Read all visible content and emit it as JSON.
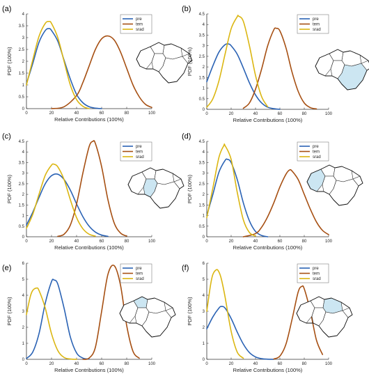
{
  "colors": {
    "pre": "#2a62b4",
    "tem": "#a64f12",
    "srad": "#dbb611",
    "region_fill": "#cce6f2",
    "axis": "#333333"
  },
  "chart_data": [
    {
      "type": "line",
      "panel_label": "(a)",
      "xlabel": "Relative Contributions (100%)",
      "ylabel": "PDF (100%)",
      "xlim": [
        0,
        100
      ],
      "ylim": [
        0,
        4
      ],
      "xticks": [
        "0",
        "20",
        "40",
        "60",
        "80",
        "100"
      ],
      "yticks": [
        "0",
        "0.5",
        "1",
        "1.5",
        "2",
        "2.5",
        "3",
        "3.5",
        "4"
      ],
      "legend_position": "top-right",
      "legend": [
        "pre",
        "tem",
        "srad"
      ],
      "highlight": "none",
      "series": [
        {
          "name": "pre",
          "x": [
            0,
            5,
            10,
            15,
            18,
            20,
            25,
            30,
            35,
            40,
            45,
            50,
            55,
            60
          ],
          "y": [
            1.05,
            1.9,
            2.8,
            3.3,
            3.38,
            3.3,
            2.85,
            2.05,
            1.25,
            0.6,
            0.25,
            0.08,
            0.02,
            0
          ]
        },
        {
          "name": "tem",
          "x": [
            20,
            30,
            40,
            45,
            50,
            55,
            60,
            65,
            70,
            75,
            80,
            85,
            90,
            95,
            100
          ],
          "y": [
            0,
            0.08,
            0.55,
            1.1,
            1.8,
            2.5,
            2.95,
            3.07,
            2.9,
            2.4,
            1.7,
            1.0,
            0.5,
            0.18,
            0.05
          ]
        },
        {
          "name": "srad",
          "x": [
            0,
            5,
            10,
            15,
            18,
            20,
            25,
            30,
            35,
            40,
            45,
            50
          ],
          "y": [
            1.0,
            2.05,
            3.05,
            3.6,
            3.68,
            3.6,
            3.0,
            2.0,
            1.0,
            0.38,
            0.1,
            0
          ]
        }
      ]
    },
    {
      "type": "line",
      "panel_label": "(b)",
      "xlabel": "Relative Contributions (100%)",
      "ylabel": "PDF (100%)",
      "xlim": [
        0,
        100
      ],
      "ylim": [
        0,
        4.5
      ],
      "xticks": [
        "0",
        "20",
        "40",
        "60",
        "80",
        "100"
      ],
      "yticks": [
        "0",
        "0.5",
        "1",
        "1.5",
        "2",
        "2.5",
        "3",
        "3.5",
        "4",
        "4.5"
      ],
      "legend_position": "top-right",
      "legend": [
        "pre",
        "tem",
        "srad"
      ],
      "highlight": "south",
      "series": [
        {
          "name": "pre",
          "x": [
            0,
            5,
            10,
            15,
            18,
            20,
            25,
            30,
            35,
            40,
            45,
            50,
            55,
            60
          ],
          "y": [
            1.3,
            2.05,
            2.7,
            3.05,
            3.08,
            3.0,
            2.6,
            1.95,
            1.25,
            0.68,
            0.3,
            0.1,
            0.03,
            0
          ]
        },
        {
          "name": "tem",
          "x": [
            30,
            35,
            40,
            45,
            50,
            55,
            57,
            60,
            65,
            70,
            75,
            80,
            85,
            90
          ],
          "y": [
            0.05,
            0.3,
            0.95,
            1.9,
            3.0,
            3.75,
            3.82,
            3.7,
            2.9,
            1.75,
            0.85,
            0.3,
            0.08,
            0.02
          ]
        },
        {
          "name": "srad",
          "x": [
            0,
            5,
            10,
            15,
            20,
            25,
            26,
            30,
            35,
            40,
            45,
            50
          ],
          "y": [
            0.1,
            0.5,
            1.35,
            2.6,
            3.8,
            4.37,
            4.4,
            4.15,
            3.0,
            1.6,
            0.6,
            0.12
          ]
        }
      ]
    },
    {
      "type": "line",
      "panel_label": "(c)",
      "xlabel": "Relative Contributions (100%)",
      "ylabel": "PDF (100%)",
      "xlim": [
        0,
        100
      ],
      "ylim": [
        0,
        4.5
      ],
      "xticks": [
        "0",
        "20",
        "40",
        "60",
        "80",
        "100"
      ],
      "yticks": [
        "0",
        "0.5",
        "1",
        "1.5",
        "2",
        "2.5",
        "3",
        "3.5",
        "4",
        "4.5"
      ],
      "legend_position": "top-right",
      "legend": [
        "pre",
        "tem",
        "srad"
      ],
      "highlight": "center",
      "series": [
        {
          "name": "pre",
          "x": [
            0,
            5,
            10,
            15,
            20,
            25,
            30,
            35,
            40,
            45,
            50,
            55,
            60,
            65
          ],
          "y": [
            0.55,
            1.15,
            1.85,
            2.5,
            2.88,
            2.95,
            2.7,
            2.2,
            1.55,
            0.95,
            0.5,
            0.22,
            0.08,
            0.02
          ]
        },
        {
          "name": "tem",
          "x": [
            25,
            30,
            35,
            40,
            45,
            50,
            53,
            55,
            60,
            65,
            70,
            75,
            80
          ],
          "y": [
            0.02,
            0.12,
            0.55,
            1.55,
            3.0,
            4.25,
            4.5,
            4.4,
            3.3,
            1.75,
            0.65,
            0.18,
            0.03
          ]
        },
        {
          "name": "srad",
          "x": [
            0,
            5,
            10,
            15,
            20,
            22,
            25,
            30,
            35,
            40,
            45,
            50,
            55
          ],
          "y": [
            0.4,
            1.05,
            2.0,
            2.9,
            3.38,
            3.42,
            3.3,
            2.7,
            1.75,
            0.9,
            0.38,
            0.12,
            0.03
          ]
        }
      ]
    },
    {
      "type": "line",
      "panel_label": "(d)",
      "xlabel": "Relative Contributions (100%)",
      "ylabel": "PDF (100%)",
      "xlim": [
        0,
        100
      ],
      "ylim": [
        0,
        4.5
      ],
      "xticks": [
        "0",
        "20",
        "40",
        "60",
        "80",
        "100"
      ],
      "yticks": [
        "0",
        "0.5",
        "1",
        "1.5",
        "2",
        "2.5",
        "3",
        "3.5",
        "4",
        "4.5"
      ],
      "legend_position": "top-right",
      "legend": [
        "pre",
        "tem",
        "srad"
      ],
      "highlight": "west",
      "series": [
        {
          "name": "pre",
          "x": [
            0,
            5,
            10,
            15,
            17,
            20,
            25,
            30,
            35,
            40,
            45,
            50
          ],
          "y": [
            1.0,
            2.0,
            3.05,
            3.6,
            3.65,
            3.5,
            2.7,
            1.6,
            0.75,
            0.25,
            0.06,
            0
          ]
        },
        {
          "name": "tem",
          "x": [
            30,
            40,
            45,
            50,
            55,
            60,
            65,
            68,
            70,
            75,
            80,
            85,
            90,
            95,
            100
          ],
          "y": [
            0,
            0.15,
            0.45,
            0.95,
            1.6,
            2.35,
            2.95,
            3.15,
            3.1,
            2.7,
            2.0,
            1.3,
            0.7,
            0.3,
            0.1
          ]
        },
        {
          "name": "srad",
          "x": [
            0,
            5,
            10,
            14,
            15,
            20,
            25,
            30,
            35,
            40
          ],
          "y": [
            0.9,
            2.3,
            3.75,
            4.3,
            4.3,
            3.65,
            2.1,
            0.8,
            0.2,
            0.03
          ]
        }
      ]
    },
    {
      "type": "line",
      "panel_label": "(e)",
      "xlabel": "Relative Contributions (100%)",
      "ylabel": "PDF (100%)",
      "xlim": [
        0,
        100
      ],
      "ylim": [
        0,
        6
      ],
      "xticks": [
        "0",
        "20",
        "40",
        "60",
        "80",
        "100"
      ],
      "yticks": [
        "0",
        "1",
        "2",
        "3",
        "4",
        "5",
        "6"
      ],
      "legend_position": "top-right",
      "legend": [
        "pre",
        "tem",
        "srad"
      ],
      "highlight": "north",
      "series": [
        {
          "name": "pre",
          "x": [
            0,
            5,
            10,
            15,
            20,
            22,
            25,
            30,
            35,
            40,
            45,
            50
          ],
          "y": [
            0.05,
            0.45,
            1.6,
            3.5,
            4.85,
            4.95,
            4.7,
            3.2,
            1.4,
            0.4,
            0.08,
            0.01
          ]
        },
        {
          "name": "tem",
          "x": [
            45,
            50,
            55,
            60,
            65,
            70,
            75,
            80,
            85,
            90
          ],
          "y": [
            0,
            0.08,
            0.75,
            3.0,
            5.3,
            5.85,
            4.65,
            2.1,
            0.5,
            0.07
          ]
        },
        {
          "name": "srad",
          "x": [
            0,
            3,
            5,
            8,
            10,
            15,
            20,
            25,
            30,
            35,
            40
          ],
          "y": [
            2.8,
            3.9,
            4.3,
            4.45,
            4.3,
            3.2,
            1.6,
            0.55,
            0.12,
            0.02,
            0
          ]
        }
      ]
    },
    {
      "type": "line",
      "panel_label": "(f)",
      "xlabel": "Relative Contributions (100%)",
      "ylabel": "PDF (100%)",
      "xlim": [
        0,
        100
      ],
      "ylim": [
        0,
        6
      ],
      "xticks": [
        "0",
        "20",
        "40",
        "60",
        "80",
        "100"
      ],
      "yticks": [
        "0",
        "1",
        "2",
        "3",
        "4",
        "5",
        "6"
      ],
      "legend_position": "top-right",
      "legend": [
        "pre",
        "tem",
        "srad"
      ],
      "highlight": "northeast",
      "series": [
        {
          "name": "pre",
          "x": [
            0,
            5,
            10,
            12,
            15,
            20,
            25,
            30,
            35,
            40,
            45,
            50,
            55
          ],
          "y": [
            1.9,
            2.65,
            3.2,
            3.3,
            3.2,
            2.55,
            1.7,
            0.95,
            0.42,
            0.15,
            0.04,
            0.01,
            0
          ]
        },
        {
          "name": "tem",
          "x": [
            55,
            60,
            65,
            70,
            75,
            78,
            80,
            85,
            90,
            95
          ],
          "y": [
            0.02,
            0.2,
            0.95,
            2.5,
            4.2,
            4.55,
            4.4,
            3.0,
            1.2,
            0.3
          ]
        },
        {
          "name": "srad",
          "x": [
            0,
            3,
            5,
            8,
            10,
            12,
            15,
            20,
            25,
            30
          ],
          "y": [
            3.0,
            4.6,
            5.3,
            5.6,
            5.45,
            5.0,
            3.9,
            1.75,
            0.45,
            0.07
          ]
        }
      ]
    }
  ]
}
